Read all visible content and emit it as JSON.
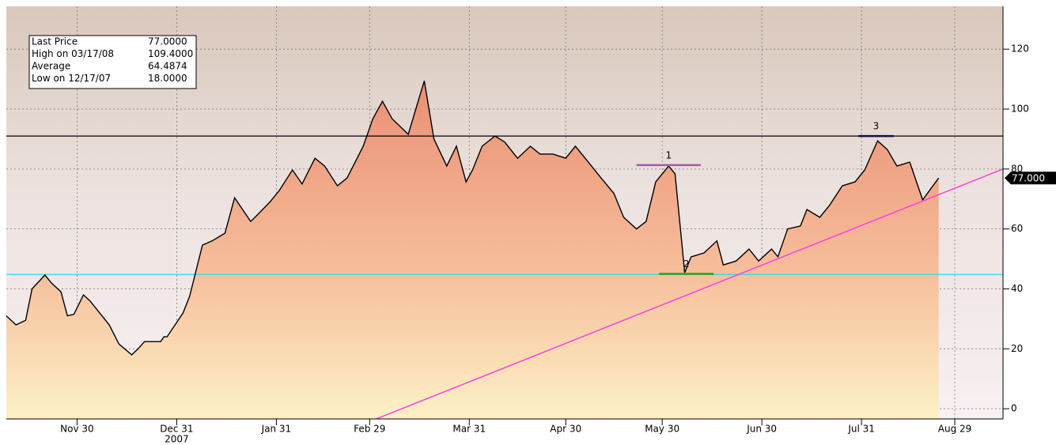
{
  "chart_data": {
    "type": "area",
    "color": "#000000",
    "x": [
      "2007-11-08",
      "2007-11-11",
      "2007-11-14",
      "2007-11-16",
      "2007-11-20",
      "2007-11-22",
      "2007-11-25",
      "2007-11-27",
      "2007-11-29",
      "2007-12-02",
      "2007-12-04",
      "2007-12-07",
      "2007-12-10",
      "2007-12-13",
      "2007-12-17",
      "2007-12-19",
      "2007-12-21",
      "2007-12-26",
      "2007-12-27",
      "2007-12-28",
      "2008-01-02",
      "2008-01-04",
      "2008-01-08",
      "2008-01-11",
      "2008-01-15",
      "2008-01-18",
      "2008-01-23",
      "2008-01-25",
      "2008-01-29",
      "2008-02-01",
      "2008-02-05",
      "2008-02-08",
      "2008-02-12",
      "2008-02-15",
      "2008-02-19",
      "2008-02-22",
      "2008-02-27",
      "2008-03-01",
      "2008-03-04",
      "2008-03-07",
      "2008-03-12",
      "2008-03-17",
      "2008-03-20",
      "2008-03-24",
      "2008-03-27",
      "2008-03-30",
      "2008-04-01",
      "2008-04-04",
      "2008-04-08",
      "2008-04-11",
      "2008-04-15",
      "2008-04-19",
      "2008-04-22",
      "2008-04-26",
      "2008-04-30",
      "2008-05-03",
      "2008-05-07",
      "2008-05-11",
      "2008-05-15",
      "2008-05-18",
      "2008-05-22",
      "2008-05-25",
      "2008-05-28",
      "2008-06-01",
      "2008-06-03",
      "2008-06-06",
      "2008-06-08",
      "2008-06-12",
      "2008-06-16",
      "2008-06-18",
      "2008-06-22",
      "2008-06-26",
      "2008-06-29",
      "2008-07-03",
      "2008-07-05",
      "2008-07-08",
      "2008-07-12",
      "2008-07-14",
      "2008-07-18",
      "2008-07-21",
      "2008-07-25",
      "2008-07-29",
      "2008-08-01",
      "2008-08-05",
      "2008-08-08",
      "2008-08-11",
      "2008-08-15",
      "2008-08-19",
      "2008-08-24"
    ],
    "values": [
      31,
      28,
      29.5,
      40,
      44.6,
      42,
      39,
      31,
      31.5,
      38,
      36,
      32,
      28,
      21.6,
      18,
      20,
      22.4,
      22.4,
      24,
      24,
      32,
      37.5,
      54.6,
      56,
      58.6,
      70.4,
      62.5,
      64.6,
      69,
      73,
      79.7,
      75,
      83.6,
      81,
      74.4,
      77,
      87.6,
      96.8,
      102.6,
      96.8,
      91.6,
      109.4,
      90,
      81,
      87.6,
      75.7,
      79.7,
      87.6,
      91,
      89,
      83.6,
      87.6,
      85,
      85,
      83.6,
      87.6,
      82.3,
      77,
      71.8,
      63.9,
      60,
      62.5,
      75.7,
      81,
      78.4,
      45.4,
      50.7,
      52,
      56,
      48,
      49.3,
      53.3,
      49.3,
      53.3,
      50.7,
      60,
      61,
      66.5,
      63.9,
      67.8,
      74.4,
      75.7,
      79.7,
      89.4,
      86.5,
      81,
      82.3,
      69.7,
      77
    ],
    "xlim": [
      "2007-11-08",
      "2008-09-13"
    ],
    "xticks": [
      {
        "value": "2007-11-30",
        "label": "Nov 30"
      },
      {
        "value": "2007-12-31",
        "label": "Dec 31"
      },
      {
        "value": "2008-01-31",
        "label": "Jan 31"
      },
      {
        "value": "2008-02-29",
        "label": "Feb 29"
      },
      {
        "value": "2008-03-31",
        "label": "Mar 31"
      },
      {
        "value": "2008-04-30",
        "label": "Apr 30"
      },
      {
        "value": "2008-05-30",
        "label": "May 30"
      },
      {
        "value": "2008-06-30",
        "label": "Jun 30"
      },
      {
        "value": "2008-07-31",
        "label": "Jul 31"
      },
      {
        "value": "2008-08-29",
        "label": "Aug 29"
      }
    ],
    "year_label": {
      "value": "2007-12-31",
      "label": "2007"
    },
    "ylim": [
      -3.4,
      134.3
    ],
    "yticks": [
      0,
      20,
      40,
      60,
      80,
      100,
      120
    ],
    "grid": true,
    "hlines": [
      {
        "value": 91,
        "color": "#000000"
      },
      {
        "value": 44.8,
        "color": "#20e0e0"
      }
    ],
    "trendline": {
      "x": [
        "2008-03-10",
        "2008-09-13"
      ],
      "values": [
        0,
        80
      ],
      "color": "#ff40e0"
    },
    "markers": [
      {
        "label": "1",
        "x": [
          "2008-05-22",
          "2008-06-11"
        ],
        "value": 81.3,
        "color": "#9a5fa8"
      },
      {
        "label": "2",
        "x": [
          "2008-05-29",
          "2008-06-15"
        ],
        "value": 45,
        "color": "#3a9a20"
      },
      {
        "label": "3",
        "x": [
          "2008-07-30",
          "2008-08-10"
        ],
        "value": 91,
        "color": "#101050"
      }
    ],
    "last_price_tag": {
      "value": 77,
      "label": "77.000"
    },
    "info_box": [
      {
        "label": "Last Price",
        "value": "77.0000"
      },
      {
        "label": "High on  03/17/08",
        "value": "109.4000"
      },
      {
        "label": "Average",
        "value": "64.4874"
      },
      {
        "label": "Low on  12/17/07",
        "value": "18.0000"
      }
    ]
  }
}
